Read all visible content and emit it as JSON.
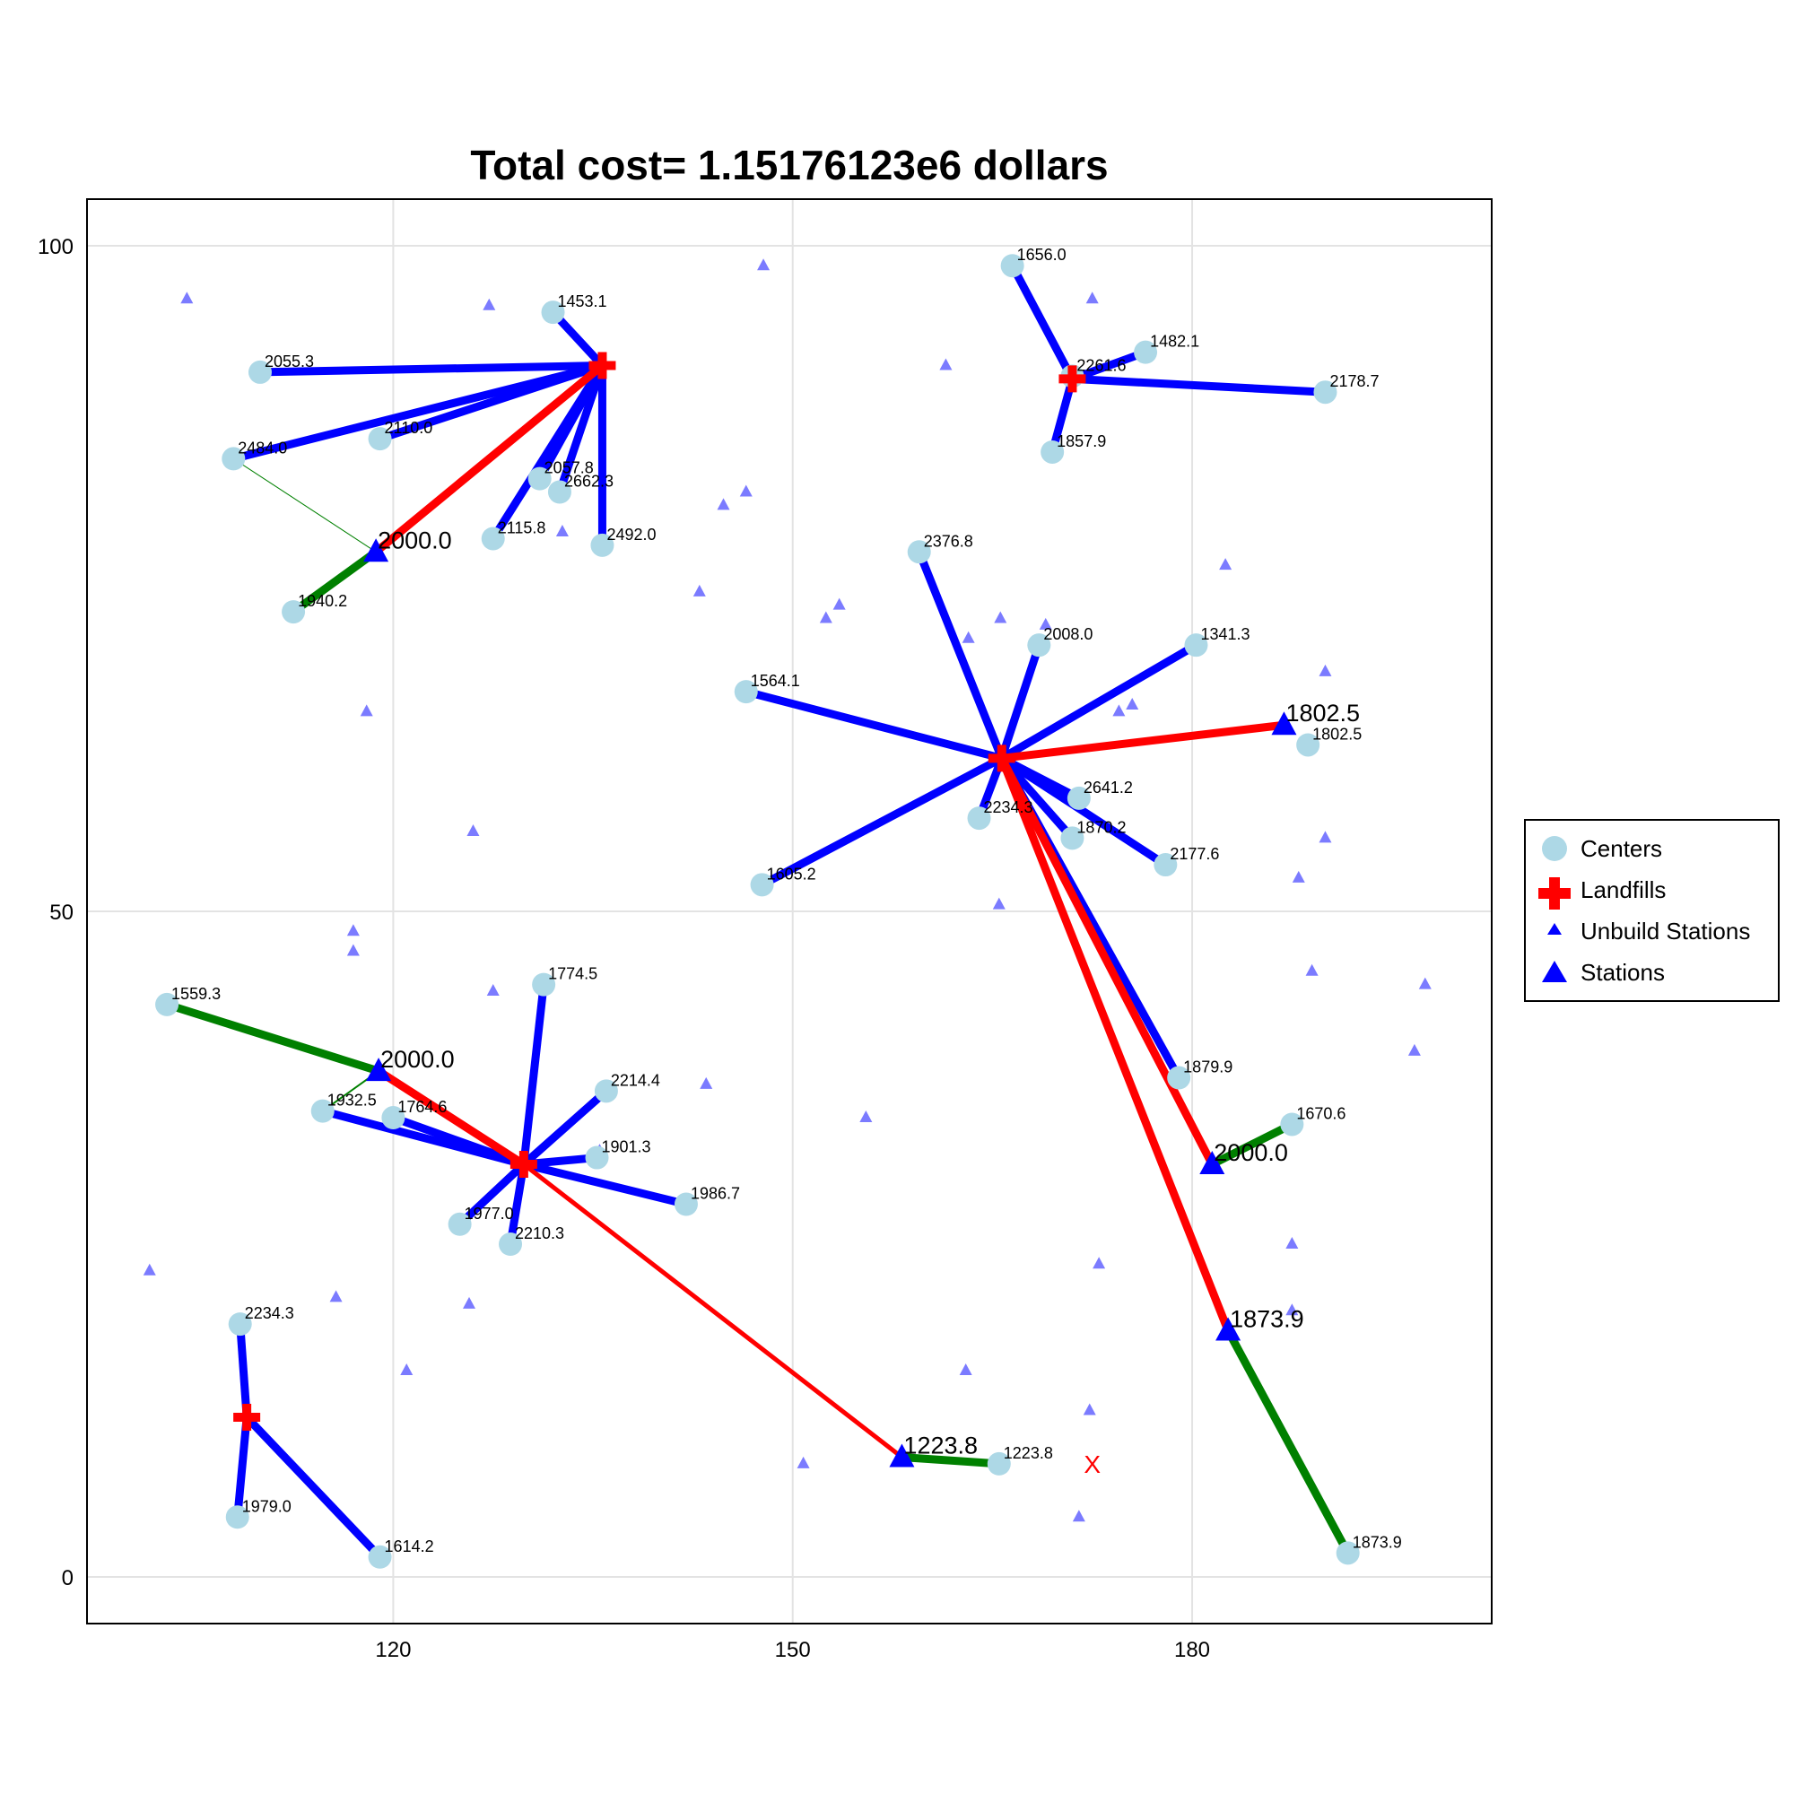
{
  "chart_data": {
    "type": "scatter",
    "title": "Total cost= 1.15176123e6 dollars",
    "xlim": [
      97,
      202.5
    ],
    "ylim": [
      -3.5,
      103.5
    ],
    "xticks": [
      120,
      150,
      180
    ],
    "yticks": [
      0,
      50,
      100
    ],
    "grid": true,
    "legend_position": "right",
    "legend": [
      "Centers",
      "Landfills",
      "Unbuild Stations",
      "Stations"
    ],
    "colors": {
      "center": "#add8e6",
      "landfill": "#ff0000",
      "unbuilt_station": "#7b7bff",
      "station": "#0000ff",
      "center_link": "#0000ff",
      "landfill_link": "#ff0000",
      "station_link": "#008000"
    },
    "centers": [
      {
        "x": 132.0,
        "y": 95.0,
        "label": "1453.1"
      },
      {
        "x": 110.0,
        "y": 90.5,
        "label": "2055.3"
      },
      {
        "x": 119.0,
        "y": 85.5,
        "label": "2110.0"
      },
      {
        "x": 108.0,
        "y": 84.0,
        "label": "2484.0"
      },
      {
        "x": 131.0,
        "y": 82.5,
        "label": "2057.8"
      },
      {
        "x": 132.5,
        "y": 81.5,
        "label": "2662.3"
      },
      {
        "x": 127.5,
        "y": 78.0,
        "label": "2115.8"
      },
      {
        "x": 135.7,
        "y": 77.5,
        "label": "2492.0"
      },
      {
        "x": 112.5,
        "y": 72.5,
        "label": "1940.2"
      },
      {
        "x": 166.5,
        "y": 98.5,
        "label": "1656.0"
      },
      {
        "x": 176.5,
        "y": 92.0,
        "label": "1482.1"
      },
      {
        "x": 171.0,
        "y": 90.2,
        "label": "2261.6"
      },
      {
        "x": 190.0,
        "y": 89.0,
        "label": "2178.7"
      },
      {
        "x": 169.5,
        "y": 84.5,
        "label": "1857.9"
      },
      {
        "x": 159.5,
        "y": 77.0,
        "label": "2376.8"
      },
      {
        "x": 168.5,
        "y": 70.0,
        "label": "2008.0"
      },
      {
        "x": 180.3,
        "y": 70.0,
        "label": "1341.3"
      },
      {
        "x": 146.5,
        "y": 66.5,
        "label": "1564.1"
      },
      {
        "x": 188.7,
        "y": 62.5,
        "label": "1802.5"
      },
      {
        "x": 171.5,
        "y": 58.5,
        "label": "2641.2"
      },
      {
        "x": 164.0,
        "y": 57.0,
        "label": "2234.3"
      },
      {
        "x": 171.0,
        "y": 55.5,
        "label": "1870.2"
      },
      {
        "x": 178.0,
        "y": 53.5,
        "label": "2177.6"
      },
      {
        "x": 147.7,
        "y": 52.0,
        "label": "1605.2"
      },
      {
        "x": 103.0,
        "y": 43.0,
        "label": "1559.3"
      },
      {
        "x": 131.3,
        "y": 44.5,
        "label": "1774.5"
      },
      {
        "x": 136.0,
        "y": 36.5,
        "label": "2214.4"
      },
      {
        "x": 114.7,
        "y": 35.0,
        "label": "1932.5"
      },
      {
        "x": 120.0,
        "y": 34.5,
        "label": "1764.6"
      },
      {
        "x": 135.3,
        "y": 31.5,
        "label": "1901.3"
      },
      {
        "x": 142.0,
        "y": 28.0,
        "label": "1986.7"
      },
      {
        "x": 125.0,
        "y": 26.5,
        "label": "1977.0"
      },
      {
        "x": 128.8,
        "y": 25.0,
        "label": "2210.3"
      },
      {
        "x": 179.0,
        "y": 37.5,
        "label": "1879.9"
      },
      {
        "x": 187.5,
        "y": 34.0,
        "label": "1670.6"
      },
      {
        "x": 108.5,
        "y": 19.0,
        "label": "2234.3"
      },
      {
        "x": 108.3,
        "y": 4.5,
        "label": "1979.0"
      },
      {
        "x": 119.0,
        "y": 1.5,
        "label": "1614.2"
      },
      {
        "x": 165.5,
        "y": 8.5,
        "label": "1223.8"
      },
      {
        "x": 191.7,
        "y": 1.8,
        "label": "1873.9"
      }
    ],
    "landfills": [
      {
        "x": 135.7,
        "y": 91.0
      },
      {
        "x": 171.0,
        "y": 90.0
      },
      {
        "x": 165.7,
        "y": 61.5
      },
      {
        "x": 129.8,
        "y": 31.0
      },
      {
        "x": 109.0,
        "y": 12.0
      }
    ],
    "stations": [
      {
        "x": 118.7,
        "y": 77.0,
        "label": "2000.0"
      },
      {
        "x": 186.9,
        "y": 64.0,
        "label": "1802.5"
      },
      {
        "x": 118.9,
        "y": 38.0,
        "label": "2000.0"
      },
      {
        "x": 181.5,
        "y": 31.0,
        "label": "2000.0"
      },
      {
        "x": 182.7,
        "y": 18.5,
        "label": "1873.9"
      },
      {
        "x": 158.2,
        "y": 9.0,
        "label": "1223.8"
      }
    ],
    "unbuilt_stations": [
      {
        "x": 104.5,
        "y": 96.0
      },
      {
        "x": 127.2,
        "y": 95.5
      },
      {
        "x": 147.8,
        "y": 98.5
      },
      {
        "x": 172.5,
        "y": 96.0
      },
      {
        "x": 161.5,
        "y": 91.0
      },
      {
        "x": 132.7,
        "y": 78.5
      },
      {
        "x": 144.8,
        "y": 80.5
      },
      {
        "x": 146.5,
        "y": 81.5
      },
      {
        "x": 143.0,
        "y": 74.0
      },
      {
        "x": 152.5,
        "y": 72.0
      },
      {
        "x": 153.5,
        "y": 73.0
      },
      {
        "x": 163.2,
        "y": 70.5
      },
      {
        "x": 165.6,
        "y": 72.0
      },
      {
        "x": 169.0,
        "y": 71.5
      },
      {
        "x": 182.5,
        "y": 76.0
      },
      {
        "x": 190.0,
        "y": 68.0
      },
      {
        "x": 175.5,
        "y": 65.5
      },
      {
        "x": 174.5,
        "y": 65.0
      },
      {
        "x": 118.0,
        "y": 65.0
      },
      {
        "x": 126.0,
        "y": 56.0
      },
      {
        "x": 190.0,
        "y": 55.5
      },
      {
        "x": 188.0,
        "y": 52.5
      },
      {
        "x": 165.5,
        "y": 50.5
      },
      {
        "x": 117.0,
        "y": 48.5
      },
      {
        "x": 117.0,
        "y": 47.0
      },
      {
        "x": 127.5,
        "y": 44.0
      },
      {
        "x": 189.0,
        "y": 45.5
      },
      {
        "x": 197.5,
        "y": 44.5
      },
      {
        "x": 196.7,
        "y": 39.5
      },
      {
        "x": 143.5,
        "y": 37.0
      },
      {
        "x": 155.5,
        "y": 34.5
      },
      {
        "x": 135.5,
        "y": 32.0
      },
      {
        "x": 187.5,
        "y": 25.0
      },
      {
        "x": 173.0,
        "y": 23.5
      },
      {
        "x": 101.7,
        "y": 23.0
      },
      {
        "x": 115.7,
        "y": 21.0
      },
      {
        "x": 125.7,
        "y": 20.5
      },
      {
        "x": 187.5,
        "y": 20.0
      },
      {
        "x": 121.0,
        "y": 15.5
      },
      {
        "x": 163.0,
        "y": 15.5
      },
      {
        "x": 172.3,
        "y": 12.5
      },
      {
        "x": 150.8,
        "y": 8.5
      },
      {
        "x": 171.5,
        "y": 4.5
      }
    ],
    "marker_x": {
      "x": 172.5,
      "y": 8.5,
      "label": "X",
      "color": "#ff0000"
    },
    "links": [
      {
        "from": [
          135.7,
          91.0
        ],
        "to": [
          132.0,
          95.0
        ],
        "color": "#0000ff",
        "width": 9
      },
      {
        "from": [
          135.7,
          91.0
        ],
        "to": [
          110.0,
          90.5
        ],
        "color": "#0000ff",
        "width": 9
      },
      {
        "from": [
          135.7,
          91.0
        ],
        "to": [
          119.0,
          85.5
        ],
        "color": "#0000ff",
        "width": 9
      },
      {
        "from": [
          135.7,
          91.0
        ],
        "to": [
          108.0,
          84.0
        ],
        "color": "#0000ff",
        "width": 9
      },
      {
        "from": [
          135.7,
          91.0
        ],
        "to": [
          131.0,
          82.5
        ],
        "color": "#0000ff",
        "width": 9
      },
      {
        "from": [
          135.7,
          91.0
        ],
        "to": [
          132.5,
          81.5
        ],
        "color": "#0000ff",
        "width": 9
      },
      {
        "from": [
          135.7,
          91.0
        ],
        "to": [
          127.5,
          78.0
        ],
        "color": "#0000ff",
        "width": 9
      },
      {
        "from": [
          135.7,
          91.0
        ],
        "to": [
          135.7,
          77.5
        ],
        "color": "#0000ff",
        "width": 9
      },
      {
        "from": [
          135.7,
          91.0
        ],
        "to": [
          118.7,
          77.0
        ],
        "color": "#ff0000",
        "width": 9
      },
      {
        "from": [
          118.7,
          77.0
        ],
        "to": [
          112.5,
          72.5
        ],
        "color": "#008000",
        "width": 9
      },
      {
        "from": [
          118.7,
          77.0
        ],
        "to": [
          108.0,
          84.0
        ],
        "color": "#008000",
        "width": 1
      },
      {
        "from": [
          171.0,
          90.0
        ],
        "to": [
          166.5,
          98.5
        ],
        "color": "#0000ff",
        "width": 9
      },
      {
        "from": [
          171.0,
          90.0
        ],
        "to": [
          176.5,
          92.0
        ],
        "color": "#0000ff",
        "width": 9
      },
      {
        "from": [
          171.0,
          90.0
        ],
        "to": [
          190.0,
          89.0
        ],
        "color": "#0000ff",
        "width": 9
      },
      {
        "from": [
          171.0,
          90.0
        ],
        "to": [
          169.5,
          84.5
        ],
        "color": "#0000ff",
        "width": 9
      },
      {
        "from": [
          165.7,
          61.5
        ],
        "to": [
          159.5,
          77.0
        ],
        "color": "#0000ff",
        "width": 9
      },
      {
        "from": [
          165.7,
          61.5
        ],
        "to": [
          168.5,
          70.0
        ],
        "color": "#0000ff",
        "width": 9
      },
      {
        "from": [
          165.7,
          61.5
        ],
        "to": [
          180.3,
          70.0
        ],
        "color": "#0000ff",
        "width": 9
      },
      {
        "from": [
          165.7,
          61.5
        ],
        "to": [
          146.5,
          66.5
        ],
        "color": "#0000ff",
        "width": 9
      },
      {
        "from": [
          165.7,
          61.5
        ],
        "to": [
          171.5,
          58.5
        ],
        "color": "#0000ff",
        "width": 9
      },
      {
        "from": [
          165.7,
          61.5
        ],
        "to": [
          164.0,
          57.0
        ],
        "color": "#0000ff",
        "width": 9
      },
      {
        "from": [
          165.7,
          61.5
        ],
        "to": [
          171.0,
          55.5
        ],
        "color": "#0000ff",
        "width": 9
      },
      {
        "from": [
          165.7,
          61.5
        ],
        "to": [
          178.0,
          53.5
        ],
        "color": "#0000ff",
        "width": 9
      },
      {
        "from": [
          165.7,
          61.5
        ],
        "to": [
          147.7,
          52.0
        ],
        "color": "#0000ff",
        "width": 9
      },
      {
        "from": [
          165.7,
          61.5
        ],
        "to": [
          179.0,
          37.5
        ],
        "color": "#0000ff",
        "width": 9
      },
      {
        "from": [
          165.7,
          61.5
        ],
        "to": [
          186.9,
          64.0
        ],
        "color": "#ff0000",
        "width": 9
      },
      {
        "from": [
          165.7,
          61.5
        ],
        "to": [
          181.5,
          31.0
        ],
        "color": "#ff0000",
        "width": 9
      },
      {
        "from": [
          165.7,
          61.5
        ],
        "to": [
          182.7,
          18.5
        ],
        "color": "#ff0000",
        "width": 9
      },
      {
        "from": [
          181.5,
          31.0
        ],
        "to": [
          187.5,
          34.0
        ],
        "color": "#008000",
        "width": 9
      },
      {
        "from": [
          182.7,
          18.5
        ],
        "to": [
          191.7,
          1.8
        ],
        "color": "#008000",
        "width": 9
      },
      {
        "from": [
          129.8,
          31.0
        ],
        "to": [
          131.3,
          44.5
        ],
        "color": "#0000ff",
        "width": 9
      },
      {
        "from": [
          129.8,
          31.0
        ],
        "to": [
          136.0,
          36.5
        ],
        "color": "#0000ff",
        "width": 9
      },
      {
        "from": [
          129.8,
          31.0
        ],
        "to": [
          114.7,
          35.0
        ],
        "color": "#0000ff",
        "width": 9
      },
      {
        "from": [
          129.8,
          31.0
        ],
        "to": [
          120.0,
          34.5
        ],
        "color": "#0000ff",
        "width": 9
      },
      {
        "from": [
          129.8,
          31.0
        ],
        "to": [
          135.3,
          31.5
        ],
        "color": "#0000ff",
        "width": 9
      },
      {
        "from": [
          129.8,
          31.0
        ],
        "to": [
          142.0,
          28.0
        ],
        "color": "#0000ff",
        "width": 9
      },
      {
        "from": [
          129.8,
          31.0
        ],
        "to": [
          125.0,
          26.5
        ],
        "color": "#0000ff",
        "width": 9
      },
      {
        "from": [
          129.8,
          31.0
        ],
        "to": [
          128.8,
          25.0
        ],
        "color": "#0000ff",
        "width": 9
      },
      {
        "from": [
          129.8,
          31.0
        ],
        "to": [
          118.9,
          38.0
        ],
        "color": "#ff0000",
        "width": 9
      },
      {
        "from": [
          118.9,
          38.0
        ],
        "to": [
          103.0,
          43.0
        ],
        "color": "#008000",
        "width": 9
      },
      {
        "from": [
          118.9,
          38.0
        ],
        "to": [
          114.7,
          35.0
        ],
        "color": "#008000",
        "width": 2
      },
      {
        "from": [
          129.8,
          31.0
        ],
        "to": [
          158.2,
          9.0
        ],
        "color": "#ff0000",
        "width": 5
      },
      {
        "from": [
          158.2,
          9.0
        ],
        "to": [
          165.5,
          8.5
        ],
        "color": "#008000",
        "width": 9
      },
      {
        "from": [
          109.0,
          12.0
        ],
        "to": [
          108.5,
          19.0
        ],
        "color": "#0000ff",
        "width": 9
      },
      {
        "from": [
          109.0,
          12.0
        ],
        "to": [
          108.3,
          4.5
        ],
        "color": "#0000ff",
        "width": 9
      },
      {
        "from": [
          109.0,
          12.0
        ],
        "to": [
          119.0,
          1.5
        ],
        "color": "#0000ff",
        "width": 9
      }
    ]
  }
}
